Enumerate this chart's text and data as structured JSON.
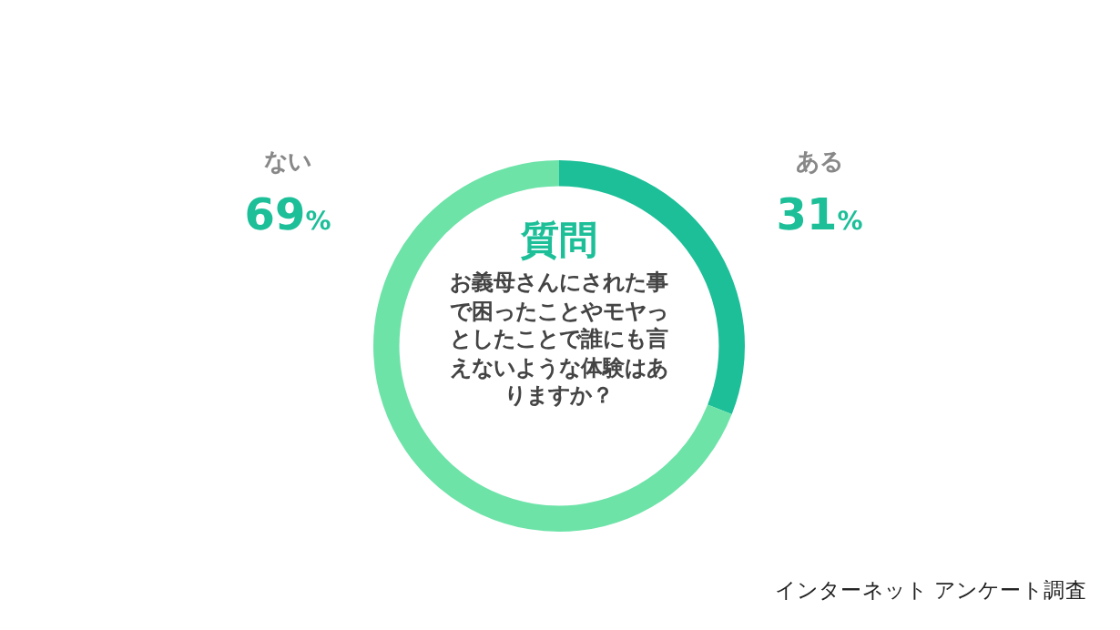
{
  "chart_data": {
    "type": "donut",
    "title": "質問",
    "subtitle": "お義母さんにされた事で困ったことやモヤっとしたことで誰にも言えないような体験はありますか？",
    "categories": [
      "ある",
      "ない"
    ],
    "values": [
      31,
      69
    ],
    "colors": [
      "#1cbf98",
      "#6de3a8"
    ],
    "value_labels": [
      "31%",
      "69%"
    ],
    "legend": false,
    "annotations": [
      "インターネット アンケート調査"
    ]
  }
}
